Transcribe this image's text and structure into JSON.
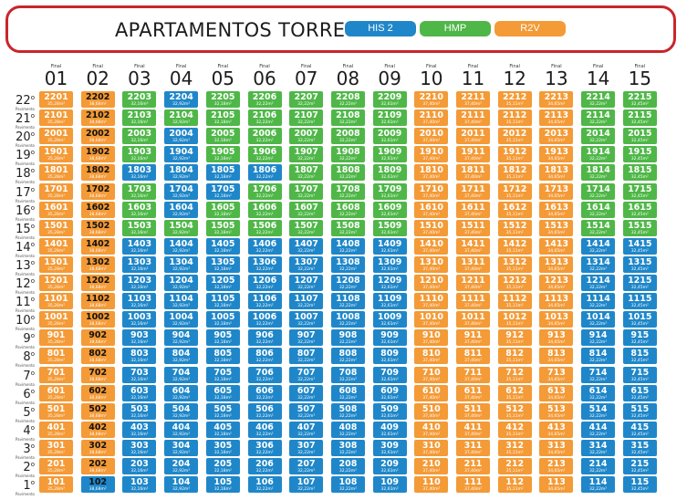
{
  "title": "APARTAMENTOS TORRE A",
  "legend": [
    {
      "label": "HIS 2",
      "color": "#1f87c9"
    },
    {
      "label": "HMP",
      "color": "#4fb748"
    },
    {
      "label": "R2V",
      "color": "#f49a36"
    }
  ],
  "column_caption": "Final",
  "floor_caption": "Pavimento",
  "columns": [
    "01",
    "02",
    "03",
    "04",
    "05",
    "06",
    "07",
    "08",
    "09",
    "10",
    "11",
    "12",
    "13",
    "14",
    "15"
  ],
  "areas": [
    "35,28m²",
    "38,68m²",
    "32,16m²",
    "32,92m²",
    "32,18m²",
    "32,22m²",
    "32,22m²",
    "32,22m²",
    "32,61m²",
    "37,40m²",
    "37,40m²",
    "35,11m²",
    "34,65m²",
    "32,22m²",
    "32,45m²"
  ],
  "floors": [
    {
      "label": "22",
      "types": "RRGBGGGGGRRRRGG"
    },
    {
      "label": "21",
      "types": "RRGGGGGGGRRRRGG"
    },
    {
      "label": "20",
      "types": "RRGBGGGGGRRRRGG"
    },
    {
      "label": "19",
      "types": "RRGBGGGGGRRRRGG"
    },
    {
      "label": "18",
      "types": "RRBBBBGGGRRRRGG"
    },
    {
      "label": "17",
      "types": "RRGBBGGGGRRRRGG"
    },
    {
      "label": "16",
      "types": "RRGBGGGGGRRRRGG"
    },
    {
      "label": "15",
      "types": "RRGGGGGGGRRRRGG"
    },
    {
      "label": "14",
      "types": "RRBBBBBBBRRRRBB"
    },
    {
      "label": "13",
      "types": "RRBBBBBBBRRRRBB"
    },
    {
      "label": "12",
      "types": "RRBBBBBBBRRRRBB"
    },
    {
      "label": "11",
      "types": "RRBBBBBBBRRRRBB"
    },
    {
      "label": "10",
      "types": "RRBBBBBBBRRRRBB"
    },
    {
      "label": "9",
      "types": "RRBBBBBBBRRRRBB"
    },
    {
      "label": "8",
      "types": "RRBBBBBBBRRRRBB"
    },
    {
      "label": "7",
      "types": "RRBBBBBBBRRRRBB"
    },
    {
      "label": "6",
      "types": "RRBBBBBBBRRRRBB"
    },
    {
      "label": "5",
      "types": "RRBBBBBBBRRRRBB"
    },
    {
      "label": "4",
      "types": "RRBBBBBBBRRRRBB"
    },
    {
      "label": "3",
      "types": "RRBBBBBBBRRRRBB"
    },
    {
      "label": "2",
      "types": "RRBBBBBBBRRRRBB"
    },
    {
      "label": "1",
      "types": "RBBBBBBBBRRRRBB"
    }
  ],
  "type_colors": {
    "B": "#1f87c9",
    "G": "#4fb748",
    "R": "#f49a36"
  }
}
